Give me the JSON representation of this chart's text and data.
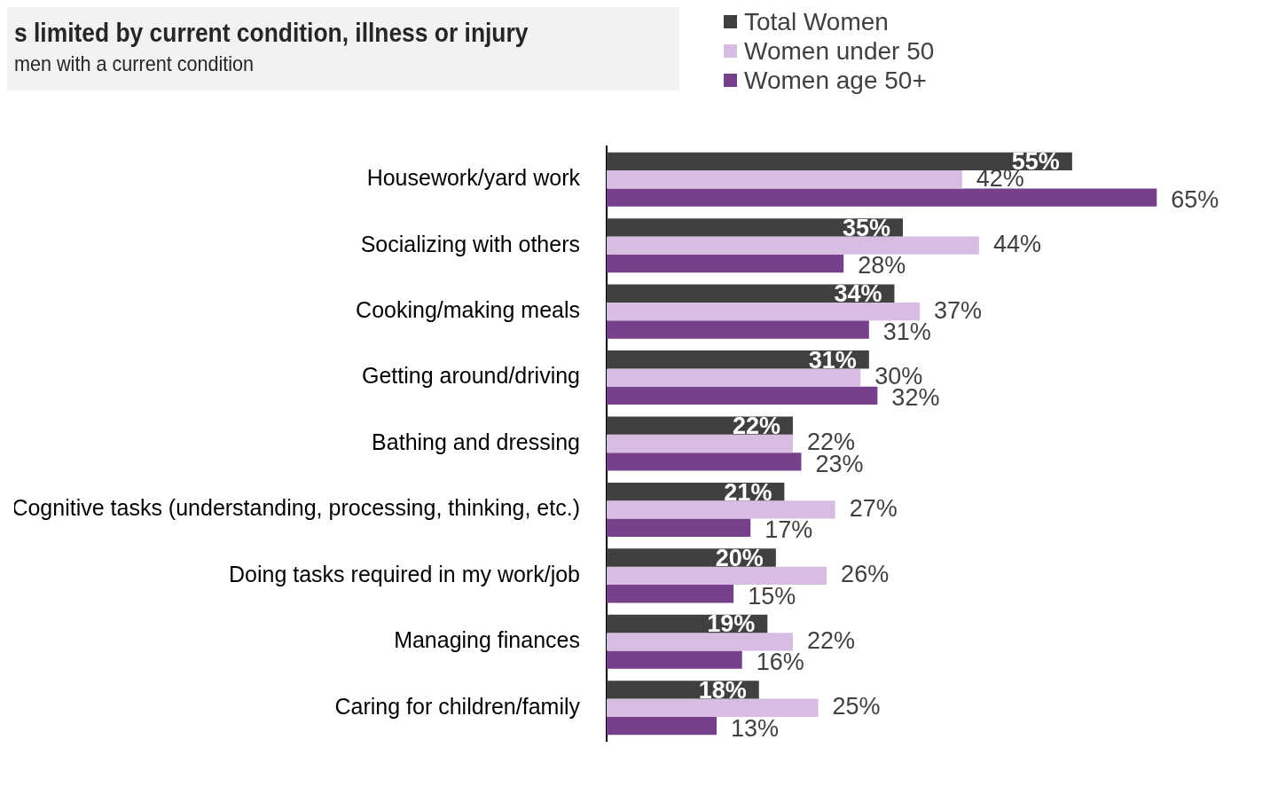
{
  "chart_data": {
    "type": "bar",
    "orientation": "horizontal",
    "title": "s limited by current condition, illness or injury",
    "subtitle": "men with a current condition",
    "categories": [
      "Housework/yard work",
      "Socializing with others",
      "Cooking/making meals",
      "Getting around/driving",
      "Bathing and dressing",
      "Cognitive tasks (understanding, processing, thinking, etc.)",
      "Doing tasks required in my work/job",
      "Managing finances",
      "Caring for children/family"
    ],
    "series": [
      {
        "name": "Total Women",
        "color": "#404040",
        "values": [
          55,
          35,
          34,
          31,
          22,
          21,
          20,
          19,
          18
        ],
        "value_labels": [
          "55%",
          "35%",
          "34%",
          "31%",
          "22%",
          "21%",
          "20%",
          "19%",
          "18%"
        ]
      },
      {
        "name": "Women under 50",
        "color": "#d7bde2",
        "values": [
          42,
          44,
          37,
          30,
          22,
          27,
          26,
          22,
          25
        ],
        "value_labels": [
          "42%",
          "44%",
          "37%",
          "30%",
          "22%",
          "27%",
          "26%",
          "22%",
          "25%"
        ]
      },
      {
        "name": "Women age 50+",
        "color": "#76418a",
        "values": [
          65,
          28,
          31,
          32,
          23,
          17,
          15,
          16,
          13
        ],
        "value_labels": [
          "65%",
          "28%",
          "31%",
          "32%",
          "23%",
          "17%",
          "15%",
          "16%",
          "13%"
        ]
      }
    ],
    "grid": false,
    "legend": "top"
  }
}
